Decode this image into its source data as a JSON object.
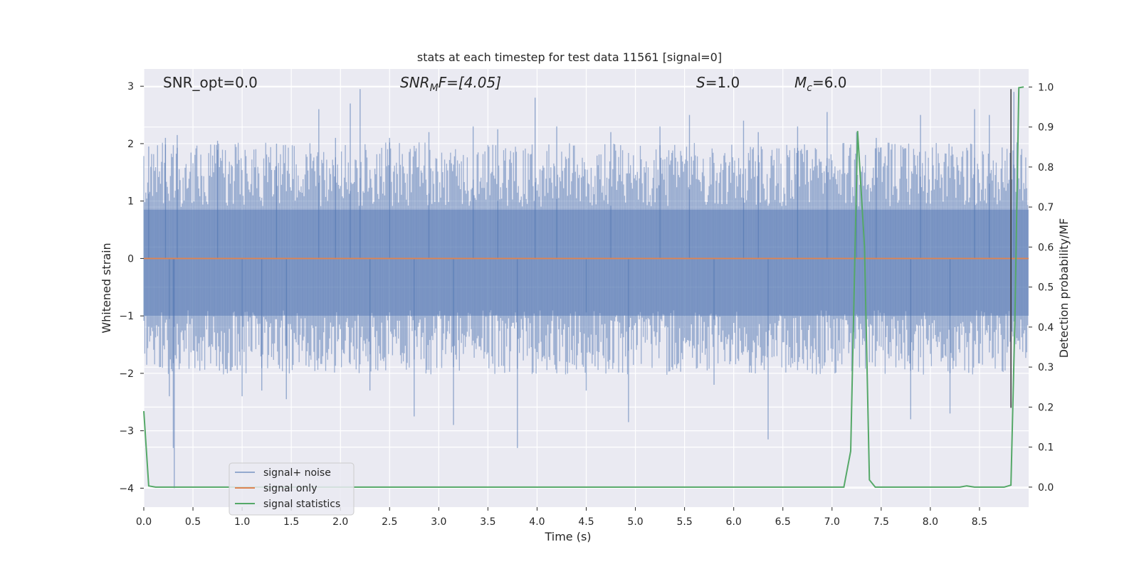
{
  "chart_data": {
    "type": "line",
    "title": "stats at each timestep for test data 11561 [signal=0]",
    "xlabel": "Time (s)",
    "ylabel": "Whitened strain",
    "y2label": "Detection probability/MF",
    "xlim": [
      0,
      9.0
    ],
    "ylim": [
      -4.33,
      3.3
    ],
    "y2lim": [
      -0.05,
      1.045
    ],
    "grid": true,
    "legend_position": "lower left",
    "xticks": [
      0.0,
      0.5,
      1.0,
      1.5,
      2.0,
      2.5,
      3.0,
      3.5,
      4.0,
      4.5,
      5.0,
      5.5,
      6.0,
      6.5,
      7.0,
      7.5,
      8.0,
      8.5
    ],
    "xtick_labels": [
      "0.0",
      "0.5",
      "1.0",
      "1.5",
      "2.0",
      "2.5",
      "3.0",
      "3.5",
      "4.0",
      "4.5",
      "5.0",
      "5.5",
      "6.0",
      "6.5",
      "7.0",
      "7.5",
      "8.0",
      "8.5"
    ],
    "yticks": [
      3,
      2,
      1,
      0,
      -1,
      -2,
      -3,
      -4
    ],
    "ytick_labels": [
      "3",
      "2",
      "1",
      "0",
      "−1",
      "−2",
      "−3",
      "−4"
    ],
    "y2ticks": [
      1.0,
      0.9,
      0.8,
      0.7,
      0.6,
      0.5,
      0.4,
      0.3,
      0.2,
      0.1,
      0.0
    ],
    "y2tick_labels": [
      "1.0",
      "0.9",
      "0.8",
      "0.7",
      "0.6",
      "0.5",
      "0.4",
      "0.3",
      "0.2",
      "0.1",
      "0.0"
    ],
    "annotations": {
      "snr_opt": "SNR_opt=0.0",
      "snr_mf_main": "SNR",
      "snr_mf_sub": "M",
      "snr_mf_rest": "F=[4.05]",
      "s_symbol": "S",
      "s_value": "=1.0",
      "mc_main": "M",
      "mc_sub": "c",
      "mc_value": "=6.0"
    },
    "colors": {
      "signal_noise": "#4c72b0",
      "signal_only": "#dd8452",
      "signal_statistics": "#55a868",
      "vline": "#333333",
      "plot_bg": "#eaeaf2"
    },
    "series": [
      {
        "name": "signal+ noise",
        "axis": "left",
        "description_values": {
          "approx_envelope": 1.5,
          "peak_max": 2.95,
          "peak_min": -4.0
        },
        "spikes": [
          {
            "x": 0.05,
            "y": 1.95
          },
          {
            "x": 0.22,
            "y": 2.1
          },
          {
            "x": 0.34,
            "y": 2.15
          },
          {
            "x": 0.31,
            "y": -4.0
          },
          {
            "x": 0.3,
            "y": -3.3
          },
          {
            "x": 0.26,
            "y": -2.4
          },
          {
            "x": 0.75,
            "y": 2.05
          },
          {
            "x": 1.0,
            "y": -2.4
          },
          {
            "x": 1.2,
            "y": -2.3
          },
          {
            "x": 1.35,
            "y": 2.0
          },
          {
            "x": 1.45,
            "y": -2.45
          },
          {
            "x": 1.78,
            "y": 2.6
          },
          {
            "x": 1.95,
            "y": 2.1
          },
          {
            "x": 2.1,
            "y": 2.7
          },
          {
            "x": 2.2,
            "y": 2.95
          },
          {
            "x": 2.3,
            "y": -2.3
          },
          {
            "x": 2.5,
            "y": 2.1
          },
          {
            "x": 2.75,
            "y": -2.75
          },
          {
            "x": 2.9,
            "y": 2.2
          },
          {
            "x": 3.15,
            "y": -2.9
          },
          {
            "x": 3.35,
            "y": 2.3
          },
          {
            "x": 3.6,
            "y": 2.25
          },
          {
            "x": 3.8,
            "y": -3.3
          },
          {
            "x": 3.98,
            "y": 2.8
          },
          {
            "x": 4.2,
            "y": 2.3
          },
          {
            "x": 4.5,
            "y": -2.3
          },
          {
            "x": 4.75,
            "y": 2.2
          },
          {
            "x": 4.93,
            "y": -2.85
          },
          {
            "x": 5.25,
            "y": 2.3
          },
          {
            "x": 5.55,
            "y": 2.5
          },
          {
            "x": 5.8,
            "y": -2.2
          },
          {
            "x": 6.1,
            "y": 2.4
          },
          {
            "x": 6.25,
            "y": 2.2
          },
          {
            "x": 6.35,
            "y": -3.15
          },
          {
            "x": 6.65,
            "y": 2.3
          },
          {
            "x": 6.95,
            "y": 2.55
          },
          {
            "x": 7.25,
            "y": 2.2
          },
          {
            "x": 7.45,
            "y": 2.1
          },
          {
            "x": 7.8,
            "y": -2.8
          },
          {
            "x": 7.9,
            "y": 2.5
          },
          {
            "x": 8.2,
            "y": -2.7
          },
          {
            "x": 8.45,
            "y": 2.6
          },
          {
            "x": 8.6,
            "y": 2.5
          },
          {
            "x": 8.85,
            "y": 2.9
          }
        ]
      },
      {
        "name": "signal only",
        "axis": "left",
        "x": [
          0.0,
          9.0
        ],
        "y": [
          0.0,
          0.0
        ]
      },
      {
        "name": "signal statistics",
        "axis": "right",
        "x": [
          0.0,
          0.05,
          0.12,
          0.5,
          1.0,
          2.0,
          3.0,
          4.0,
          5.0,
          6.0,
          7.0,
          7.12,
          7.19,
          7.26,
          7.33,
          7.38,
          7.44,
          7.5,
          8.0,
          8.3,
          8.37,
          8.45,
          8.75,
          8.82,
          8.86,
          8.9,
          8.95
        ],
        "y": [
          0.19,
          0.003,
          0.0,
          0.0,
          0.0,
          0.0,
          0.0,
          0.0,
          0.0,
          0.0,
          0.0,
          0.0,
          0.09,
          0.89,
          0.6,
          0.018,
          0.0,
          0.0,
          0.0,
          0.0,
          0.003,
          0.0,
          0.0,
          0.005,
          0.42,
          0.998,
          1.0
        ]
      }
    ],
    "vline_x": 8.82
  }
}
